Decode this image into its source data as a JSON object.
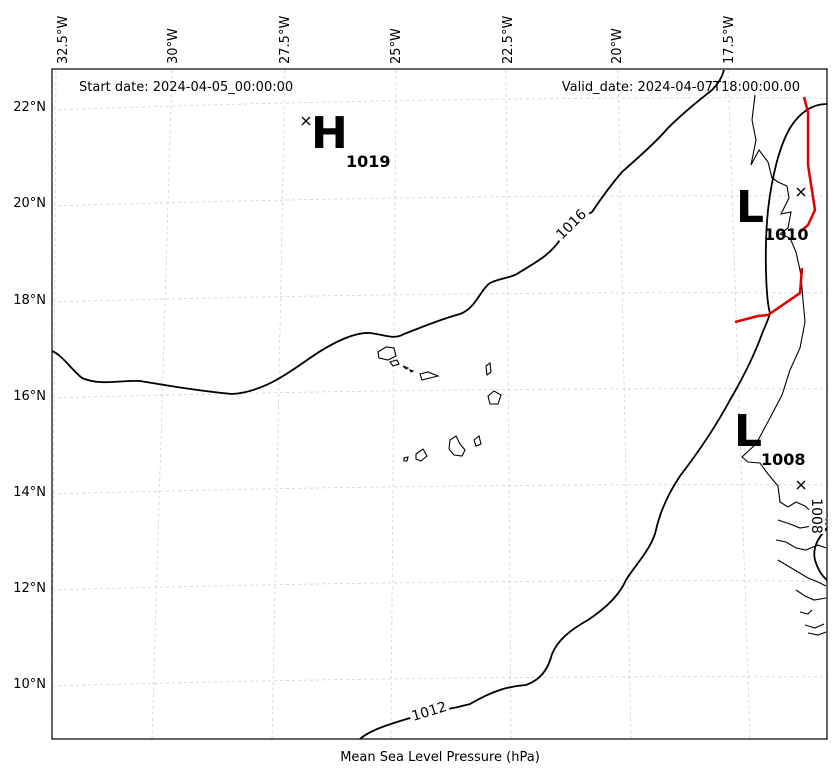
{
  "header": {
    "start_date": "Start date: 2024-04-05_00:00:00",
    "valid_date": "Valid_date: 2024-04-07T18:00:00.00"
  },
  "caption": "Mean Sea Level Pressure (hPa)",
  "lon_ticks": [
    {
      "lon": -32.5,
      "label": "32.5°W"
    },
    {
      "lon": -30,
      "label": "30°W"
    },
    {
      "lon": -27.5,
      "label": "27.5°W"
    },
    {
      "lon": -25,
      "label": "25°W"
    },
    {
      "lon": -22.5,
      "label": "22.5°W"
    },
    {
      "lon": -20,
      "label": "20°W"
    },
    {
      "lon": -17.5,
      "label": "17.5°W"
    }
  ],
  "lat_ticks": [
    {
      "lat": 22,
      "label": "22°N"
    },
    {
      "lat": 20,
      "label": "20°N"
    },
    {
      "lat": 18,
      "label": "18°N"
    },
    {
      "lat": 16,
      "label": "16°N"
    },
    {
      "lat": 14,
      "label": "14°N"
    },
    {
      "lat": 12,
      "label": "12°N"
    },
    {
      "lat": 10,
      "label": "10°N"
    }
  ],
  "pressure_centers": [
    {
      "type": "H",
      "value": "1019",
      "lon": -27.4,
      "lat": 21.7
    },
    {
      "type": "L",
      "value": "1010",
      "lon": -16.0,
      "lat": 20.2
    },
    {
      "type": "L",
      "value": "1008",
      "lon": -16.0,
      "lat": 14.1
    }
  ],
  "isobar_labels": [
    {
      "value": "1016"
    },
    {
      "value": "1012"
    },
    {
      "value": "1008"
    }
  ],
  "colors": {
    "isobar": "#000000",
    "front": "#e00000",
    "grid": "#cfcfcf",
    "coast": "#000000"
  }
}
